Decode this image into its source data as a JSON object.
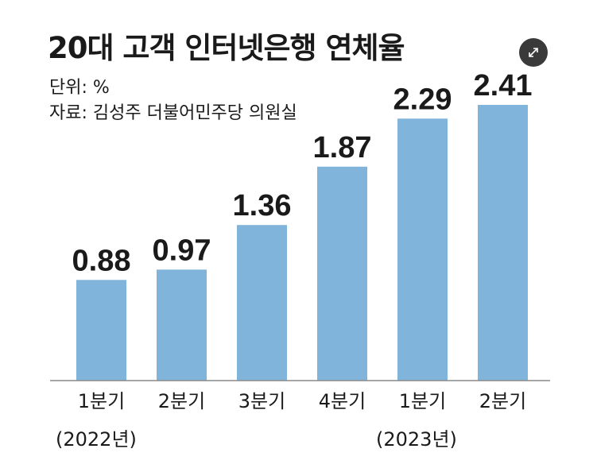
{
  "header": {
    "title": "20대 고객 인터넷은행 연체율",
    "unit": "단위: %",
    "source": "자료: 김성주 더불어민주당 의원실",
    "expand_icon": "expand-icon"
  },
  "chart_data": {
    "type": "bar",
    "title": "20대 고객 인터넷은행 연체율",
    "categories": [
      "1분기",
      "2분기",
      "3분기",
      "4분기",
      "1분기",
      "2분기"
    ],
    "value_labels": [
      "0.88",
      "0.97",
      "1.36",
      "1.87",
      "2.29",
      "2.41"
    ],
    "values": [
      0.88,
      0.97,
      1.36,
      1.87,
      2.29,
      2.41
    ],
    "year_labels": [
      "(2022년)",
      "(2023년)"
    ],
    "ylim": [
      0,
      2.41
    ],
    "grid": false,
    "bar_color": "#80b4da",
    "axis_color": "#8a8a8a"
  }
}
